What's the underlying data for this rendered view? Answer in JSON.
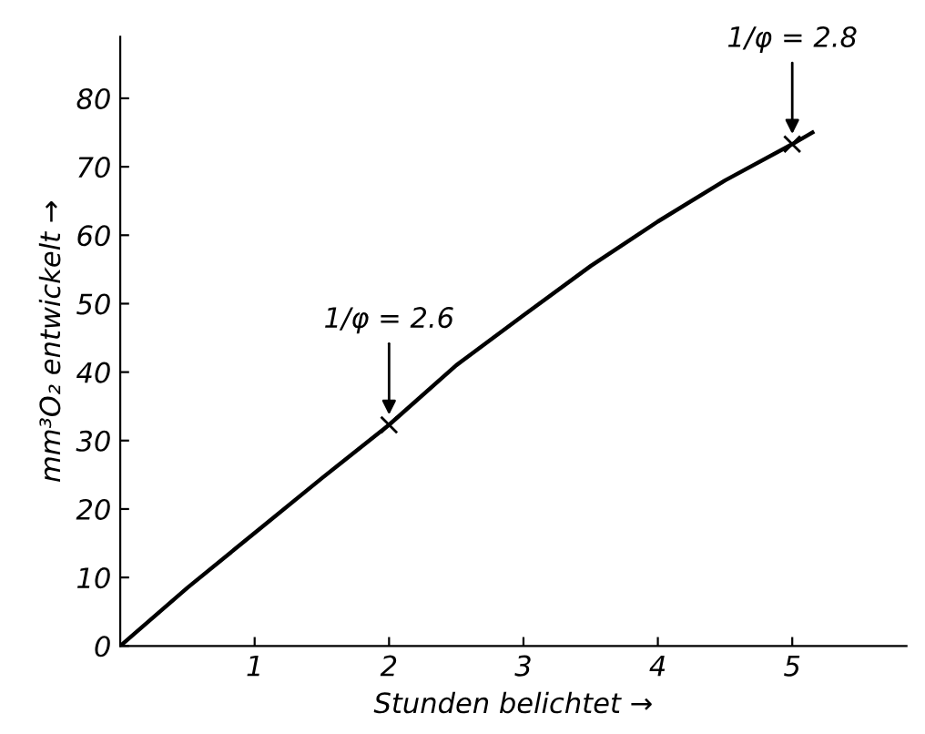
{
  "chart_data": {
    "type": "line",
    "xlabel": "Stunden belichtet →",
    "ylabel": "mm³O₂ entwickelt →",
    "series": [
      {
        "color": "#000000",
        "x": [
          0,
          0.5,
          1,
          1.5,
          2,
          2.5,
          3,
          3.5,
          4,
          4.5,
          5,
          5.15
        ],
        "values": [
          0,
          8.5,
          16.5,
          24.5,
          32.3,
          41,
          48.3,
          55.5,
          62,
          68,
          73.3,
          75
        ],
        "marker": "none"
      },
      {
        "type": "scatter",
        "color": "#000000",
        "x": [
          2,
          5
        ],
        "values": [
          32.3,
          73.3
        ],
        "marker": "cross"
      }
    ],
    "annotations": [
      {
        "text": "1/φ = 2.6",
        "x": 2,
        "y": 32.3
      },
      {
        "text": "1/φ = 2.8",
        "x": 5,
        "y": 73.3
      }
    ],
    "xlim": [
      0,
      5.85
    ],
    "ylim": [
      0,
      89
    ],
    "xticks": [
      1,
      2,
      3,
      4,
      5
    ],
    "yticks": [
      0,
      10,
      20,
      30,
      40,
      50,
      60,
      70,
      80
    ],
    "grid": false,
    "legend": false
  }
}
